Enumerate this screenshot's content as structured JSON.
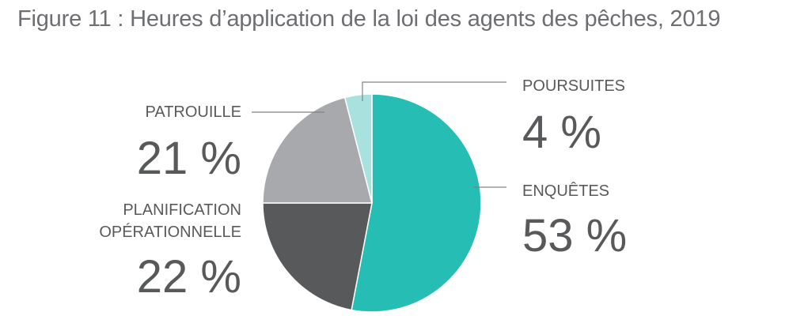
{
  "title": "Figure 11 : Heures d’application de la loi des agents des pêches, 2019",
  "chart_data": {
    "type": "pie",
    "title": "Figure 11 : Heures d’application de la loi des agents des pêches, 2019",
    "unit": "%",
    "slices": [
      {
        "key": "enquetes",
        "label_lines": [
          "ENQUÊTES"
        ],
        "value": 53,
        "display": "53 %",
        "color": "#26bdb4"
      },
      {
        "key": "planification",
        "label_lines": [
          "PLANIFICATION",
          "OPÉRATIONNELLE"
        ],
        "value": 22,
        "display": "22 %",
        "color": "#58595b"
      },
      {
        "key": "patrouille",
        "label_lines": [
          "PATROUILLE"
        ],
        "value": 21,
        "display": "21 %",
        "color": "#a7a9ac"
      },
      {
        "key": "poursuites",
        "label_lines": [
          "POURSUITES"
        ],
        "value": 4,
        "display": "4 %",
        "color": "#a8e1de"
      }
    ]
  }
}
